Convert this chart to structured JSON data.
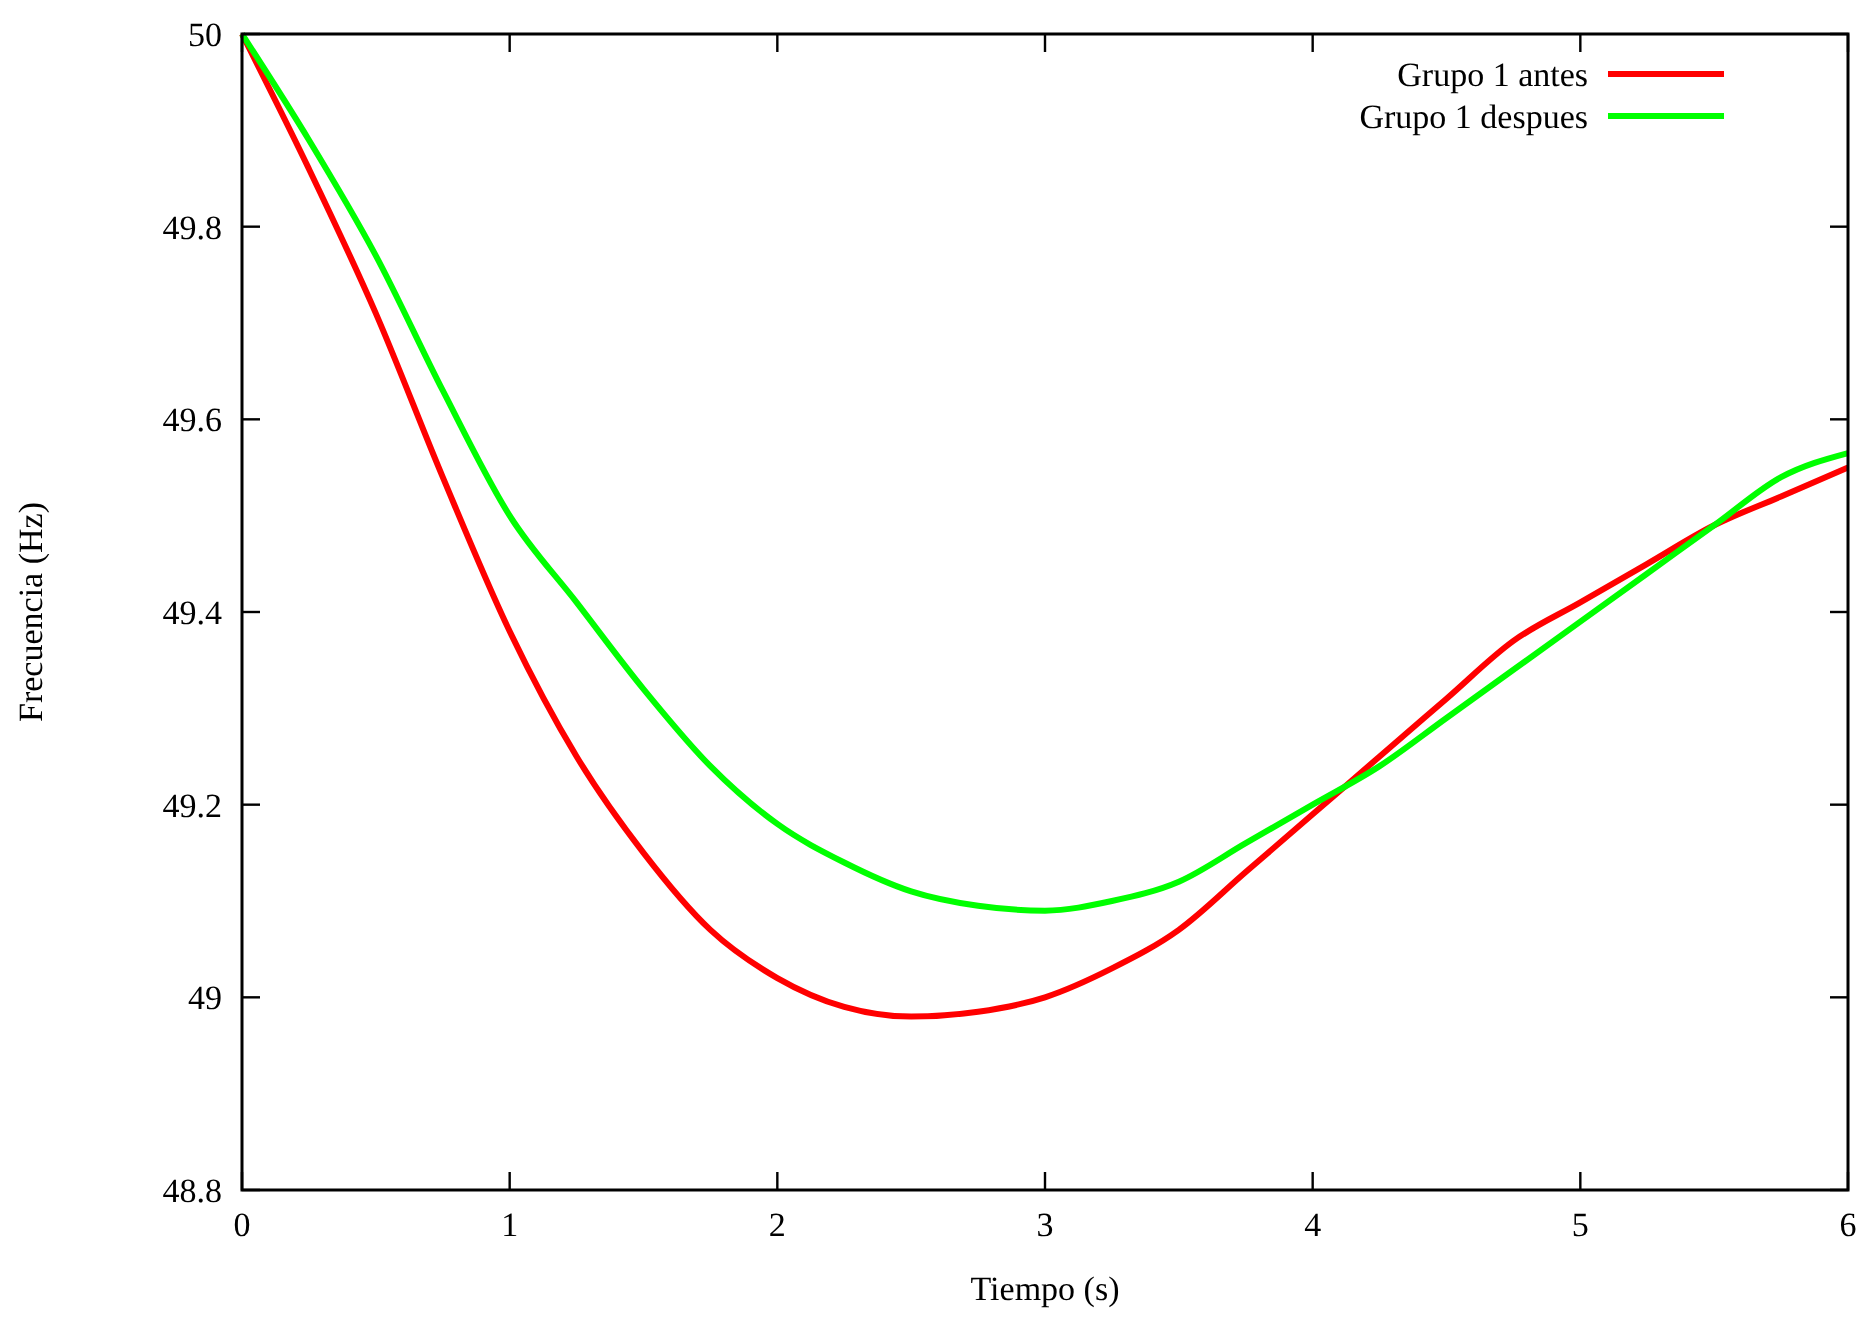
{
  "chart_data": {
    "type": "line",
    "xlabel": "Tiempo (s)",
    "ylabel": "Frecuencia (Hz)",
    "x": [
      0,
      0.25,
      0.5,
      0.75,
      1,
      1.25,
      1.5,
      1.75,
      2,
      2.25,
      2.5,
      2.75,
      3,
      3.25,
      3.5,
      3.75,
      4,
      4.25,
      4.5,
      4.75,
      5,
      5.25,
      5.5,
      5.75,
      6
    ],
    "series": [
      {
        "name": "Grupo 1 antes",
        "color": "#ff0000",
        "values": [
          50,
          49.86,
          49.71,
          49.54,
          49.38,
          49.25,
          49.15,
          49.07,
          49.02,
          48.99,
          48.98,
          48.985,
          49.0,
          49.03,
          49.07,
          49.13,
          49.19,
          49.25,
          49.31,
          49.37,
          49.41,
          49.45,
          49.49,
          49.52,
          49.55
        ]
      },
      {
        "name": "Grupo 1 despues",
        "color": "#00ff00",
        "values": [
          50,
          49.89,
          49.77,
          49.63,
          49.5,
          49.41,
          49.32,
          49.24,
          49.18,
          49.14,
          49.11,
          49.095,
          49.09,
          49.1,
          49.12,
          49.16,
          49.2,
          49.24,
          49.29,
          49.34,
          49.39,
          49.44,
          49.49,
          49.54,
          49.565
        ]
      }
    ],
    "xlim": [
      0,
      6
    ],
    "xticks": [
      0,
      1,
      2,
      3,
      4,
      5,
      6
    ],
    "ylim": [
      48.8,
      50
    ],
    "yticks": [
      48.8,
      49,
      49.2,
      49.4,
      49.6,
      49.8,
      50
    ],
    "grid": false,
    "legend": "top right",
    "marker": "none",
    "line_style": "solid"
  }
}
